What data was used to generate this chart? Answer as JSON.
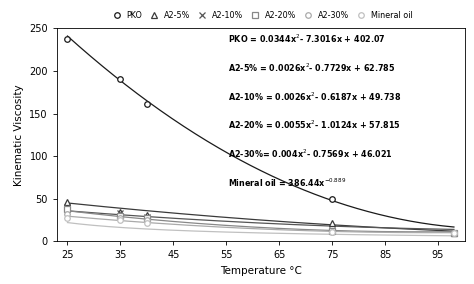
{
  "title": "",
  "xlabel": "Temperature °C",
  "ylabel": "Kinematic Viscosity",
  "xlim": [
    23,
    100
  ],
  "ylim": [
    0,
    250
  ],
  "xticks": [
    25,
    35,
    45,
    55,
    65,
    75,
    85,
    95
  ],
  "yticks": [
    0,
    50,
    100,
    150,
    200,
    250
  ],
  "data_points": {
    "PKO": {
      "x": [
        25,
        35,
        40,
        75,
        98
      ],
      "y": [
        238,
        191,
        161,
        50,
        10
      ]
    },
    "A2-5%": {
      "x": [
        25,
        35,
        40,
        75,
        98
      ],
      "y": [
        46,
        35,
        31,
        22,
        10
      ]
    },
    "A2-10%": {
      "x": [
        25,
        35,
        40,
        75,
        98
      ],
      "y": [
        40,
        33,
        29,
        13,
        10
      ]
    },
    "A2-20%": {
      "x": [
        25,
        35,
        40,
        75,
        98
      ],
      "y": [
        38,
        30,
        27,
        12,
        10
      ]
    },
    "A2-30%": {
      "x": [
        25,
        35,
        40,
        75,
        98
      ],
      "y": [
        32,
        28,
        25,
        11,
        10
      ]
    },
    "Mineral oil": {
      "x": [
        25,
        35,
        40,
        75,
        98
      ],
      "y": [
        27,
        25,
        22,
        11,
        10
      ]
    }
  },
  "poly_coeffs": {
    "PKO": [
      0.0344,
      -7.3016,
      402.07
    ],
    "A2-5%": [
      0.0026,
      -0.7729,
      62.785
    ],
    "A2-10%": [
      0.0026,
      -0.6187,
      49.738
    ],
    "A2-20%": [
      0.0055,
      -1.0124,
      57.815
    ],
    "A2-30%": [
      0.004,
      -0.7569,
      46.021
    ]
  },
  "power_coeffs": {
    "Mineral oil": [
      386.44,
      -0.889
    ]
  },
  "colors": {
    "PKO": "#1a1a1a",
    "A2-5%": "#3a3a3a",
    "A2-10%": "#555555",
    "A2-20%": "#888888",
    "A2-30%": "#aaaaaa",
    "Mineral oil": "#c0c0c0"
  },
  "markers": {
    "PKO": "o",
    "A2-5%": "^",
    "A2-10%": "x",
    "A2-20%": "s",
    "A2-30%": "o",
    "Mineral oil": "o"
  },
  "markerfacecolors": {
    "PKO": "white",
    "A2-5%": "white",
    "A2-10%": "#555555",
    "A2-20%": "white",
    "A2-30%": "white",
    "Mineral oil": "white"
  },
  "legend_order": [
    "PKO",
    "A2-5%",
    "A2-10%",
    "A2-20%",
    "A2-30%",
    "Mineral oil"
  ],
  "eq_lines": [
    "PKO = 0.0344x²- 7.3016x + 402.07",
    "A2-5% = 0.0026x²- 0.7729x + 62.785",
    "A2-10% = 0.0026x²- 0.6187x + 49.738",
    "A2-20% = 0.0055x²- 1.0124x + 57.815",
    "A2-30%= 0.004x²- 0.7569x + 46.021",
    "Mineral oil = 386.44x^{-0.889}"
  ],
  "background_color": "#ffffff"
}
